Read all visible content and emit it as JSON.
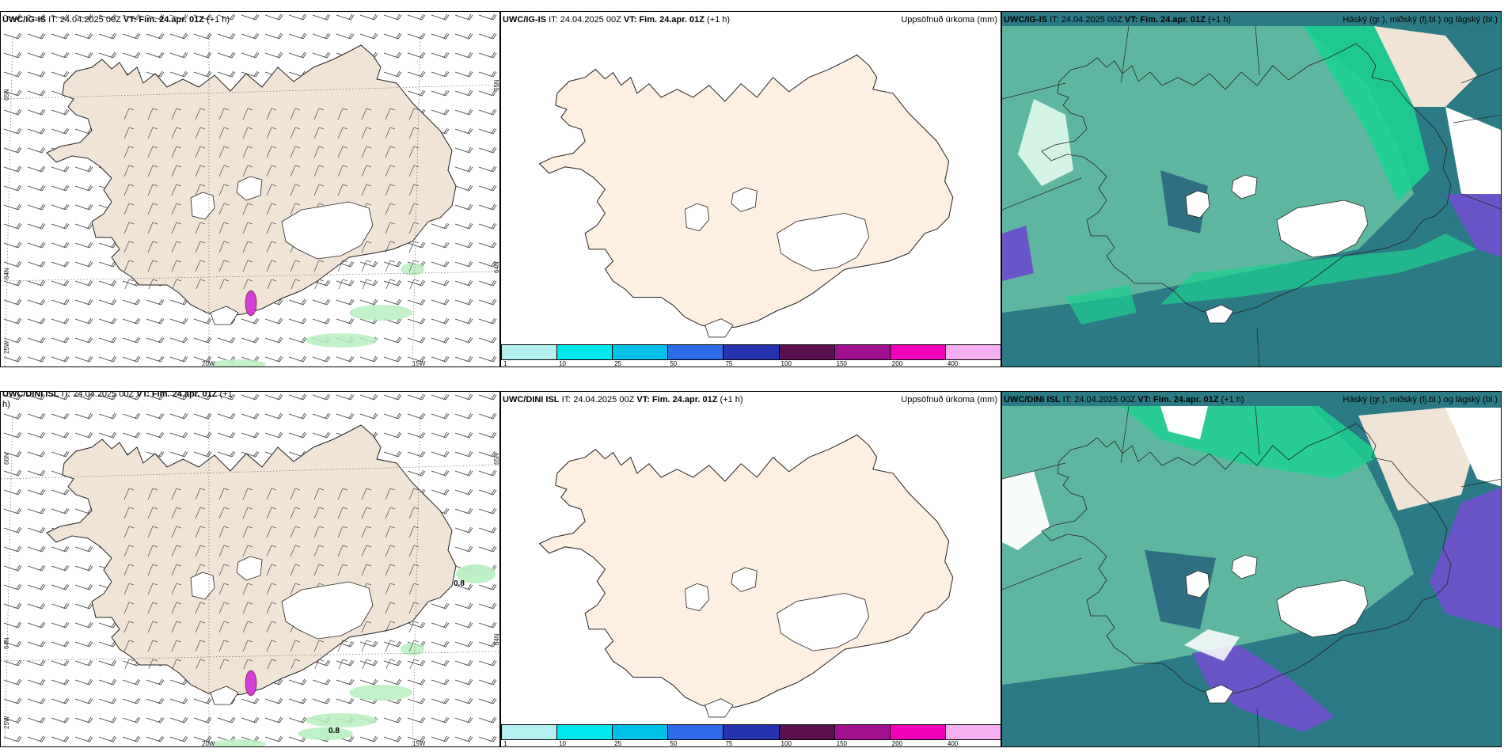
{
  "rows": [
    {
      "id": "top",
      "panels": [
        {
          "type": "wind",
          "model": "UWC/IG-IS",
          "it": "IT: 24.04.2025 00Z",
          "vt_label": "VT:",
          "vt": "Fim. 24.apr. 01Z",
          "lead": "(+1 h)",
          "lat_labels": [
            "65N",
            "64N"
          ],
          "lat_labels_right": [
            "65N",
            "64N"
          ],
          "lon_labels": [
            "25W",
            "20W",
            "15W"
          ],
          "values": []
        },
        {
          "type": "precip",
          "model": "UWC/IG-IS",
          "it": "IT: 24.04.2025 00Z",
          "vt_label": "VT:",
          "vt": "Fim. 24.apr. 01Z",
          "lead": "(+1 h)",
          "right_title": "Uppsöfnuð úrkoma (mm)",
          "colorbar": {
            "labels": [
              "1",
              "10",
              "25",
              "50",
              "75",
              "100",
              "150",
              "200",
              "400"
            ],
            "colors": [
              "#b4f0f0",
              "#00e8ee",
              "#00c0e8",
              "#2d6be8",
              "#2533b0",
              "#5a0f50",
              "#a0108e",
              "#f000b8",
              "#f4b0f0"
            ]
          }
        },
        {
          "type": "cloud",
          "model": "UWC/IG-IS",
          "it": "IT: 24.04.2025 00Z",
          "vt_label": "VT:",
          "vt": "Fim. 24.apr. 01Z",
          "lead": "(+1 h)",
          "right_title": "Háský (gr.), miðský (fj.bl.) og lágský (bl.)"
        }
      ]
    },
    {
      "id": "bottom",
      "panels": [
        {
          "type": "wind",
          "model": "UWC/DINI ISL",
          "it": "IT: 24.04.2025 00Z",
          "vt_label": "VT:",
          "vt": "Fim. 24.apr. 01Z",
          "lead": "(+1",
          "lead2": "h)",
          "lat_labels": [
            "66N",
            "64N"
          ],
          "lat_labels_right": [
            "65N",
            "64N"
          ],
          "lon_labels": [
            "25W",
            "20W",
            "15W"
          ],
          "values": [
            "0.8",
            "0.8"
          ]
        },
        {
          "type": "precip",
          "model": "UWC/DINI ISL",
          "it": "IT: 24.04.2025 00Z",
          "vt_label": "VT:",
          "vt": "Fim. 24.apr. 01Z",
          "lead": "(+1 h)",
          "right_title": "Uppsöfnuð úrkoma (mm)",
          "colorbar": {
            "labels": [
              "1",
              "10",
              "25",
              "50",
              "75",
              "100",
              "150",
              "200",
              "400"
            ],
            "colors": [
              "#b4f0f0",
              "#00e8ee",
              "#00c0e8",
              "#2d6be8",
              "#2533b0",
              "#5a0f50",
              "#a0108e",
              "#f000b8",
              "#f4b0f0"
            ]
          }
        },
        {
          "type": "cloud",
          "model": "UWC/DINI ISL",
          "it": "IT: 24.04.2025 00Z",
          "vt_label": "VT:",
          "vt": "Fim. 24.apr. 01Z",
          "lead": "(+1 h)",
          "right_title": "Háský (gr.), miðský (fj.bl.) og lágský (bl.)"
        }
      ]
    }
  ],
  "colors": {
    "land_wind": "#f0e4d6",
    "land_precip": "#fdf0e2",
    "cloud_high": "#5fb6a0",
    "cloud_mid": "#2b7a86",
    "cloud_low": "#6a55c8",
    "precip_light": "#b8f0c0"
  }
}
